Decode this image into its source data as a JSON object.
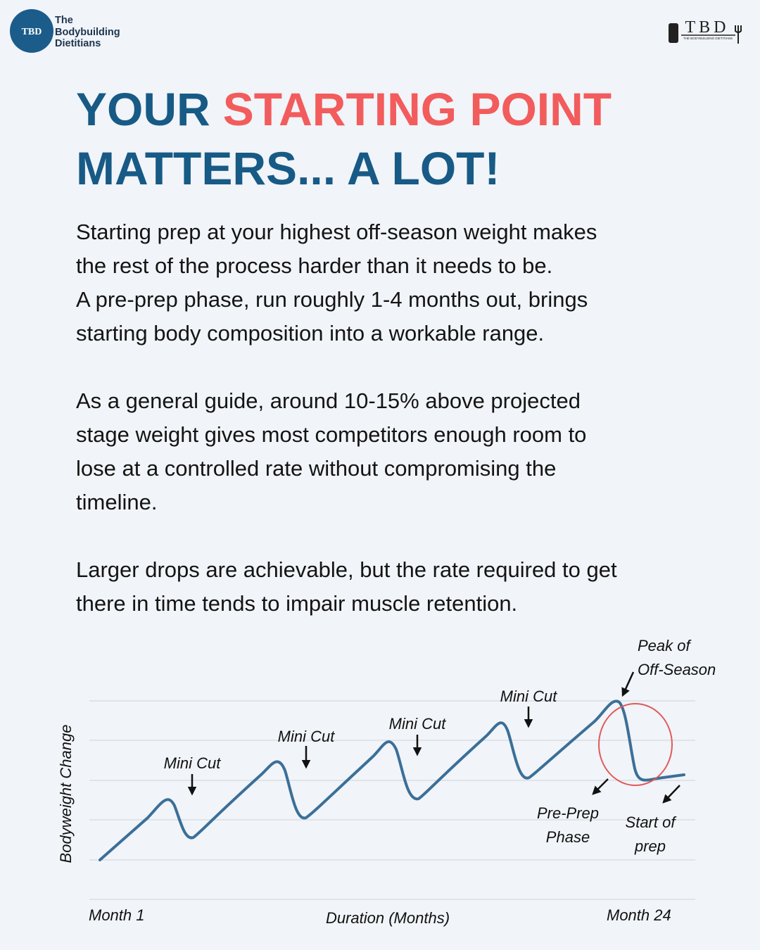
{
  "header": {
    "brand": [
      "The",
      "Bodybuilding",
      "Dietitians"
    ],
    "badge": "TBD",
    "logo": "TBD",
    "logo_sub": "THE BODYBUILDING DIETITIANS"
  },
  "title": {
    "line1_a": "YOUR",
    "line1_b": "STARTING POINT",
    "line2": "MATTERS... A LOT!"
  },
  "body": [
    [
      "Starting prep at your highest off-season weight makes",
      "the rest of the process harder than it needs to be.",
      "A pre-prep phase, run roughly 1-4 months out, brings",
      "starting body composition into a workable range."
    ],
    [
      "As a general guide, around 10-15% above projected",
      "stage weight gives most competitors enough room to",
      "lose at a controlled rate without compromising the",
      "timeline."
    ],
    [
      "Larger drops are achievable, but the rate required to get",
      "there in time tends to impair muscle retention."
    ]
  ],
  "diagram": {
    "y_label": "Bodyweight Change",
    "x_label": "Duration (Months)",
    "x_start": "Month 1",
    "x_end": "Month 24",
    "annotations": [
      "Mini Cut",
      "Mini Cut",
      "Mini Cut",
      "Mini Cut"
    ],
    "peak": [
      "Peak of",
      "Off-Season"
    ],
    "pre_prep": [
      "Pre-Prep",
      "Phase"
    ],
    "start": [
      "Start of",
      "prep"
    ]
  }
}
